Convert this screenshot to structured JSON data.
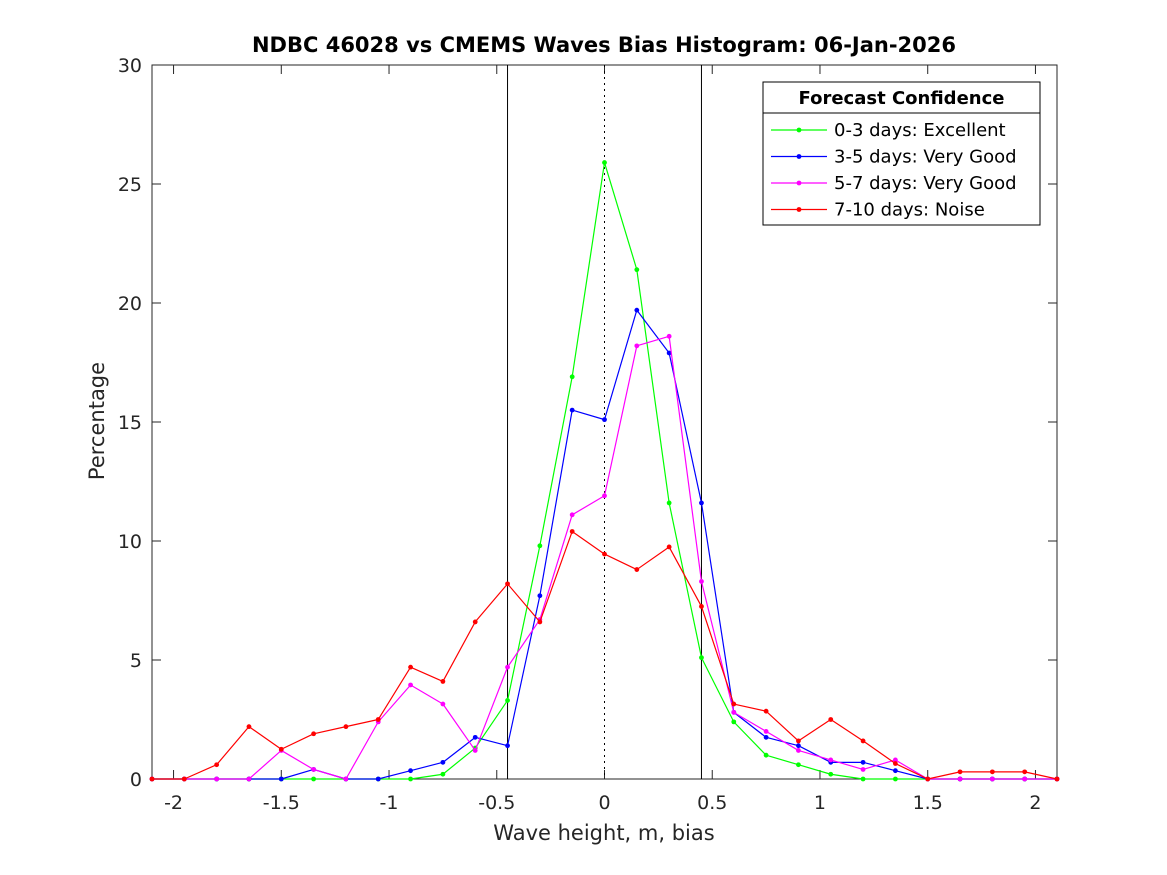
{
  "chart_data": {
    "type": "line",
    "title": "NDBC 46028 vs CMEMS Waves Bias Histogram: 06-Jan-2026",
    "xlabel": "Wave height, m, bias",
    "ylabel": "Percentage",
    "xlim": [
      -2.1,
      2.1
    ],
    "ylim": [
      0,
      30
    ],
    "xticks": [
      -2,
      -1.5,
      -1,
      -0.5,
      0,
      0.5,
      1,
      1.5,
      2
    ],
    "xtick_labels": [
      "-2",
      "-1.5",
      "-1",
      "-0.5",
      "0",
      "0.5",
      "1",
      "1.5",
      "2"
    ],
    "yticks": [
      0,
      5,
      10,
      15,
      20,
      25,
      30
    ],
    "ytick_labels": [
      "0",
      "5",
      "10",
      "15",
      "20",
      "25",
      "30"
    ],
    "reference_lines": [
      {
        "x": -0.45,
        "style": "solid"
      },
      {
        "x": 0,
        "style": "dotted"
      },
      {
        "x": 0.45,
        "style": "solid"
      }
    ],
    "legend": {
      "title": "Forecast Confidence",
      "location": "top-right"
    },
    "x": [
      -2.1,
      -1.95,
      -1.8,
      -1.65,
      -1.5,
      -1.35,
      -1.2,
      -1.05,
      -0.9,
      -0.75,
      -0.6,
      -0.45,
      -0.3,
      -0.15,
      0,
      0.15,
      0.3,
      0.45,
      0.6,
      0.75,
      0.9,
      1.05,
      1.2,
      1.35,
      1.5,
      1.65,
      1.8,
      1.95,
      2.1
    ],
    "series": [
      {
        "name": "0-3 days: Excellent",
        "color": "#00ff00",
        "values": [
          0,
          0,
          0,
          0,
          0,
          0,
          0,
          0,
          0,
          0.2,
          1.3,
          3.3,
          9.8,
          16.9,
          25.9,
          21.4,
          11.6,
          5.1,
          2.4,
          1.0,
          0.6,
          0.2,
          0,
          0,
          0,
          0,
          0,
          0,
          0
        ]
      },
      {
        "name": "3-5 days: Very Good",
        "color": "#0000ff",
        "values": [
          0,
          0,
          0,
          0,
          0,
          0.4,
          0,
          0,
          0.35,
          0.7,
          1.75,
          1.4,
          7.7,
          15.5,
          15.1,
          19.7,
          17.9,
          11.6,
          2.8,
          1.75,
          1.4,
          0.7,
          0.7,
          0.35,
          0,
          0,
          0,
          0,
          0
        ]
      },
      {
        "name": "5-7 days: Very Good",
        "color": "#ff00ff",
        "values": [
          0,
          0,
          0,
          0,
          1.2,
          0.4,
          0,
          2.4,
          3.95,
          3.15,
          1.2,
          4.7,
          6.7,
          11.1,
          11.9,
          18.2,
          18.6,
          8.3,
          2.8,
          2.0,
          1.2,
          0.8,
          0.4,
          0.8,
          0,
          0,
          0,
          0,
          0
        ]
      },
      {
        "name": "7-10 days: Noise",
        "color": "#ff0000",
        "values": [
          0,
          0,
          0.6,
          2.2,
          1.25,
          1.9,
          2.2,
          2.5,
          4.7,
          4.1,
          6.6,
          8.2,
          6.6,
          10.4,
          9.45,
          8.8,
          9.75,
          7.25,
          3.15,
          2.85,
          1.6,
          2.5,
          1.6,
          0.65,
          0,
          0.3,
          0.3,
          0.3,
          0
        ]
      }
    ]
  }
}
